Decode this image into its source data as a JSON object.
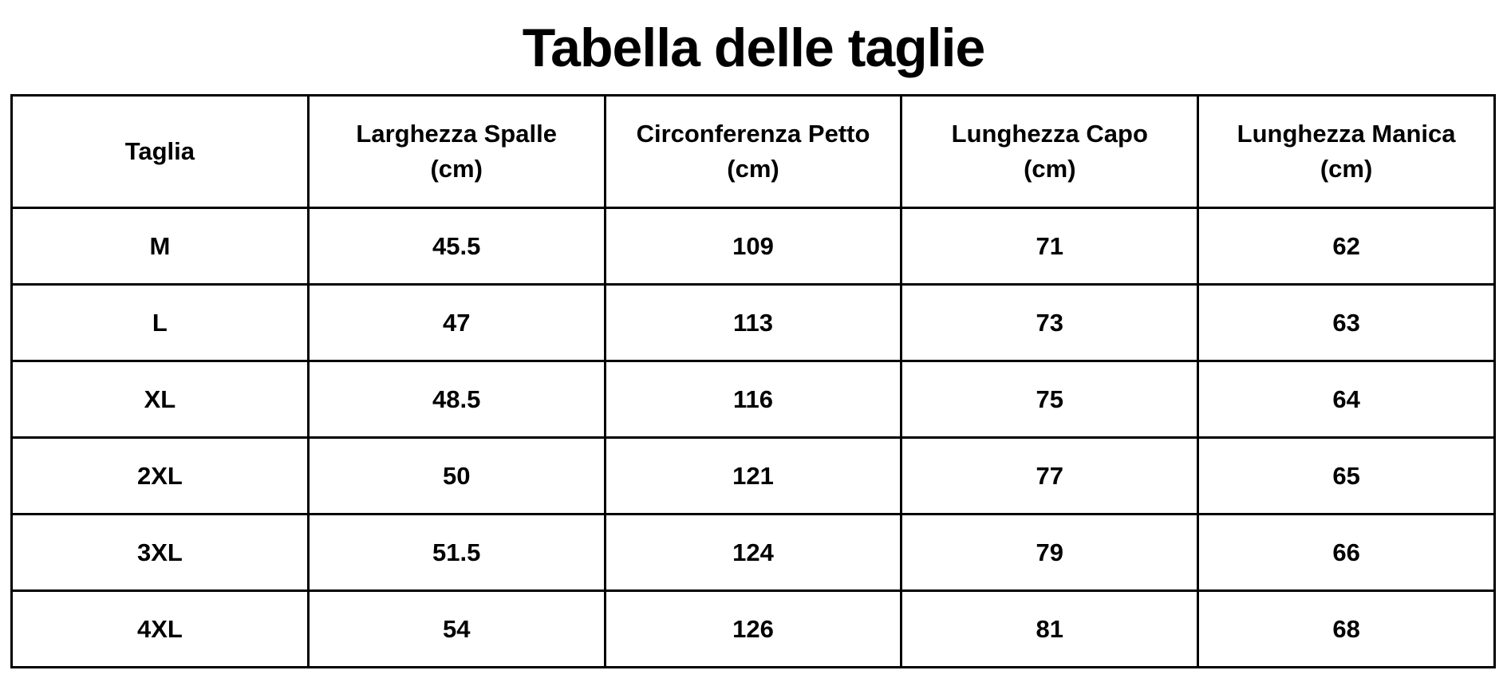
{
  "title": "Tabella delle taglie",
  "headers": [
    {
      "label": "Taglia",
      "unit": ""
    },
    {
      "label": "Larghezza Spalle",
      "unit": "(cm)"
    },
    {
      "label": "Circonferenza Petto",
      "unit": "(cm)"
    },
    {
      "label": "Lunghezza Capo",
      "unit": "(cm)"
    },
    {
      "label": "Lunghezza Manica",
      "unit": "(cm)"
    }
  ],
  "rows": [
    [
      "M",
      "45.5",
      "109",
      "71",
      "62"
    ],
    [
      "L",
      "47",
      "113",
      "73",
      "63"
    ],
    [
      "XL",
      "48.5",
      "116",
      "75",
      "64"
    ],
    [
      "2XL",
      "50",
      "121",
      "77",
      "65"
    ],
    [
      "3XL",
      "51.5",
      "124",
      "79",
      "66"
    ],
    [
      "4XL",
      "54",
      "126",
      "81",
      "68"
    ]
  ]
}
